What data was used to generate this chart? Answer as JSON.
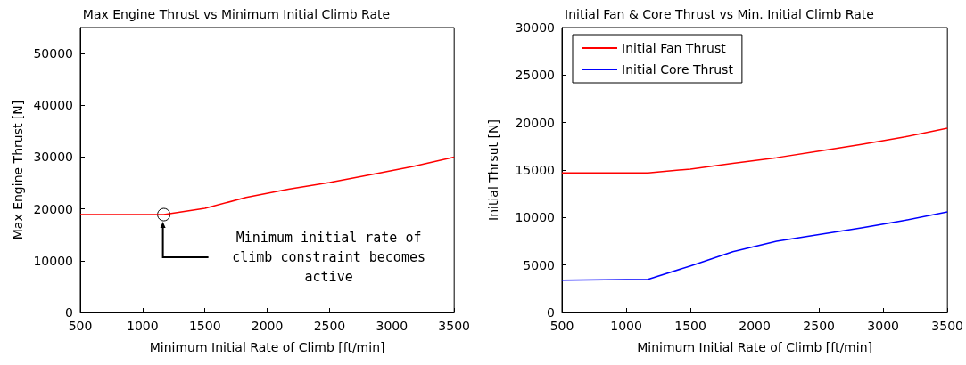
{
  "chart_data": [
    {
      "type": "line",
      "title": "Max Engine Thrust vs Minimum Initial Climb Rate",
      "xlabel": "Minimum Initial Rate of Climb [ft/min]",
      "ylabel": "Max Engine Thrust [N]",
      "x": [
        500,
        1170,
        1500,
        1830,
        2170,
        2500,
        2830,
        3170,
        3500
      ],
      "series": [
        {
          "color": "#ff0000",
          "values": [
            18900,
            18900,
            20100,
            22200,
            23800,
            25100,
            26600,
            28200,
            30000
          ]
        }
      ],
      "xlim": [
        500,
        3500
      ],
      "xticks": [
        500,
        1000,
        1500,
        2000,
        2500,
        3000,
        3500
      ],
      "ylim": [
        0,
        55000
      ],
      "yticks": [
        0,
        10000,
        20000,
        30000,
        40000,
        50000
      ],
      "grid": false,
      "legend": false,
      "marker": "none",
      "line_style": "solid",
      "annotations": [
        "Minimum initial rate of\nclimb constraint becomes\nactive"
      ]
    },
    {
      "type": "line",
      "title": "Initial Fan & Core Thrust vs Min. Initial Climb Rate",
      "xlabel": "Minimum Initial Rate of Climb [ft/min]",
      "ylabel": "Initial Thrsut [N]",
      "x": [
        500,
        1170,
        1500,
        1830,
        2170,
        2500,
        2830,
        3170,
        3500
      ],
      "series": [
        {
          "name": "Initial Fan Thrust",
          "color": "#ff0000",
          "values": [
            14700,
            14700,
            15100,
            15700,
            16300,
            17000,
            17700,
            18500,
            19400
          ]
        },
        {
          "name": "Initial Core Thrust",
          "color": "#0000ff",
          "values": [
            3400,
            3500,
            4900,
            6400,
            7500,
            8200,
            8900,
            9700,
            10600
          ]
        }
      ],
      "xlim": [
        500,
        3500
      ],
      "xticks": [
        500,
        1000,
        1500,
        2000,
        2500,
        3000,
        3500
      ],
      "ylim": [
        0,
        30000
      ],
      "yticks": [
        0,
        5000,
        10000,
        15000,
        20000,
        25000,
        30000
      ],
      "grid": false,
      "legend": "top left",
      "marker": "none",
      "line_style": "solid"
    }
  ]
}
